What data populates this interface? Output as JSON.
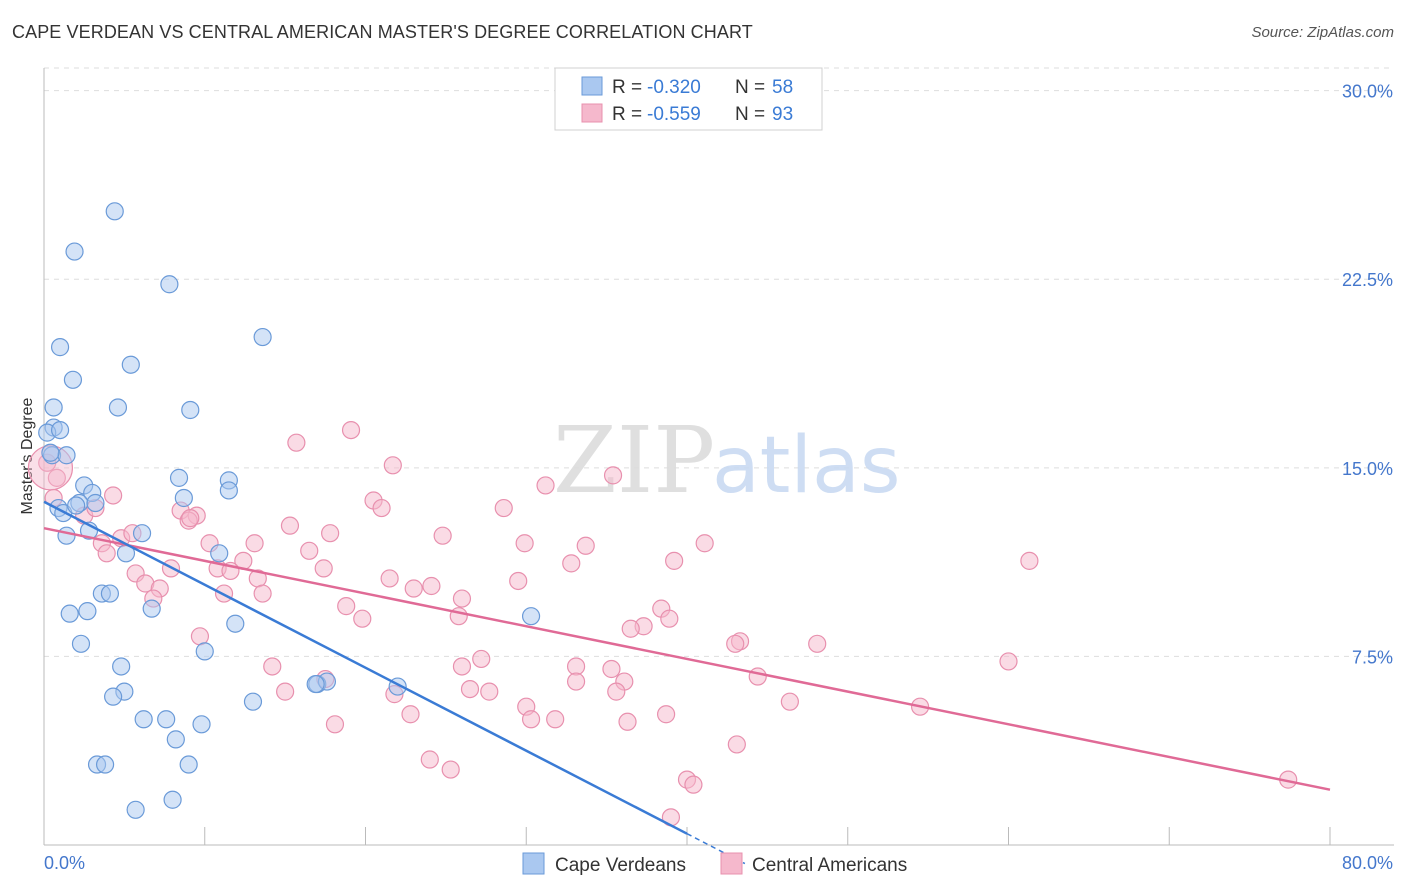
{
  "title": "CAPE VERDEAN VS CENTRAL AMERICAN MASTER'S DEGREE CORRELATION CHART",
  "source": "Source: ZipAtlas.com",
  "watermark": {
    "zip": "ZIP",
    "atlas": "atlas"
  },
  "colors": {
    "blue_fill": "#aac8f0",
    "blue_stroke": "#6a9ad8",
    "blue_line": "#3a7bd5",
    "pink_fill": "#f5b8cc",
    "pink_stroke": "#e890ae",
    "pink_line": "#e06a96",
    "tick_text": "#4477cc",
    "grid": "#dddddd"
  },
  "legend": {
    "rows": [
      {
        "r_label": "R =",
        "r_value": "-0.320",
        "n_label": "N =",
        "n_value": "58",
        "color": "blue"
      },
      {
        "r_label": "R =",
        "r_value": "-0.559",
        "n_label": "N =",
        "n_value": "93",
        "color": "pink"
      }
    ],
    "bottom": [
      "Cape Verdeans",
      "Central Americans"
    ]
  },
  "chart_data": {
    "type": "scatter",
    "title": "CAPE VERDEAN VS CENTRAL AMERICAN MASTER'S DEGREE CORRELATION CHART",
    "xlabel": "",
    "ylabel": "Master's Degree",
    "xlim": [
      0,
      80
    ],
    "ylim": [
      0,
      30.9
    ],
    "x_tick_labels": [
      "0.0%",
      "80.0%"
    ],
    "y_ticks": [
      7.5,
      15.0,
      22.5,
      30.0
    ],
    "y_tick_labels": [
      "7.5%",
      "15.0%",
      "22.5%",
      "30.0%"
    ],
    "grid": true,
    "legend_position": "top-center",
    "series": [
      {
        "name": "Cape Verdeans",
        "color": "blue",
        "points": [
          [
            4.4,
            25.2
          ],
          [
            1.9,
            23.6
          ],
          [
            7.8,
            22.3
          ],
          [
            13.6,
            20.2
          ],
          [
            1.0,
            19.8
          ],
          [
            5.4,
            19.1
          ],
          [
            1.8,
            18.5
          ],
          [
            4.6,
            17.4
          ],
          [
            9.1,
            17.3
          ],
          [
            0.6,
            17.4
          ],
          [
            0.6,
            16.6
          ],
          [
            0.2,
            16.4
          ],
          [
            0.5,
            15.5
          ],
          [
            1.4,
            15.5
          ],
          [
            8.4,
            14.6
          ],
          [
            11.5,
            14.5
          ],
          [
            11.5,
            14.1
          ],
          [
            2.5,
            14.3
          ],
          [
            3.0,
            14.0
          ],
          [
            2.2,
            13.6
          ],
          [
            3.2,
            13.6
          ],
          [
            0.9,
            13.4
          ],
          [
            1.2,
            13.2
          ],
          [
            8.7,
            13.8
          ],
          [
            2.8,
            12.5
          ],
          [
            6.1,
            12.4
          ],
          [
            1.4,
            12.3
          ],
          [
            5.1,
            11.6
          ],
          [
            10.9,
            11.6
          ],
          [
            3.6,
            10.0
          ],
          [
            4.1,
            10.0
          ],
          [
            1.6,
            9.2
          ],
          [
            2.7,
            9.3
          ],
          [
            6.7,
            9.4
          ],
          [
            11.9,
            8.8
          ],
          [
            30.3,
            9.1
          ],
          [
            2.3,
            8.0
          ],
          [
            10.0,
            7.7
          ],
          [
            4.8,
            7.1
          ],
          [
            5.0,
            6.1
          ],
          [
            4.3,
            5.9
          ],
          [
            13.0,
            5.7
          ],
          [
            17.0,
            6.4
          ],
          [
            17.6,
            6.5
          ],
          [
            22.0,
            6.3
          ],
          [
            6.2,
            5.0
          ],
          [
            7.6,
            5.0
          ],
          [
            9.8,
            4.8
          ],
          [
            8.2,
            4.2
          ],
          [
            3.3,
            3.2
          ],
          [
            3.8,
            3.2
          ],
          [
            9.0,
            3.2
          ],
          [
            5.7,
            1.4
          ],
          [
            8.0,
            1.8
          ],
          [
            16.9,
            6.4
          ],
          [
            0.4,
            15.6
          ],
          [
            2.0,
            13.5
          ],
          [
            1.0,
            16.5
          ]
        ],
        "trend": {
          "x": [
            0,
            40
          ],
          "y": [
            13.65,
            0.45
          ],
          "solid_to_x": 40,
          "dashed_to_x": 43.6
        }
      },
      {
        "name": "Central Americans",
        "color": "pink",
        "points": [
          [
            0.2,
            15.2
          ],
          [
            0.8,
            14.6
          ],
          [
            19.1,
            16.5
          ],
          [
            15.7,
            16.0
          ],
          [
            21.7,
            15.1
          ],
          [
            35.4,
            14.7
          ],
          [
            31.2,
            14.3
          ],
          [
            4.3,
            13.9
          ],
          [
            20.5,
            13.7
          ],
          [
            21.0,
            13.4
          ],
          [
            28.6,
            13.4
          ],
          [
            8.5,
            13.3
          ],
          [
            9.5,
            13.1
          ],
          [
            9.0,
            12.9
          ],
          [
            2.5,
            13.1
          ],
          [
            3.2,
            13.4
          ],
          [
            15.3,
            12.7
          ],
          [
            17.8,
            12.4
          ],
          [
            24.8,
            12.3
          ],
          [
            4.8,
            12.2
          ],
          [
            5.5,
            12.4
          ],
          [
            3.6,
            12.0
          ],
          [
            10.3,
            12.0
          ],
          [
            13.1,
            12.0
          ],
          [
            29.9,
            12.0
          ],
          [
            33.7,
            11.9
          ],
          [
            41.1,
            12.0
          ],
          [
            3.9,
            11.6
          ],
          [
            16.5,
            11.7
          ],
          [
            12.4,
            11.3
          ],
          [
            10.8,
            11.0
          ],
          [
            17.4,
            11.0
          ],
          [
            32.8,
            11.2
          ],
          [
            39.2,
            11.3
          ],
          [
            61.3,
            11.3
          ],
          [
            7.9,
            11.0
          ],
          [
            11.6,
            10.9
          ],
          [
            5.7,
            10.8
          ],
          [
            13.3,
            10.6
          ],
          [
            21.5,
            10.6
          ],
          [
            29.5,
            10.5
          ],
          [
            6.3,
            10.4
          ],
          [
            7.2,
            10.2
          ],
          [
            11.2,
            10.0
          ],
          [
            24.1,
            10.3
          ],
          [
            13.6,
            10.0
          ],
          [
            23.0,
            10.2
          ],
          [
            26.0,
            9.8
          ],
          [
            6.8,
            9.8
          ],
          [
            18.8,
            9.5
          ],
          [
            25.8,
            9.1
          ],
          [
            19.8,
            9.0
          ],
          [
            38.4,
            9.4
          ],
          [
            37.3,
            8.7
          ],
          [
            36.5,
            8.6
          ],
          [
            9.7,
            8.3
          ],
          [
            43.3,
            8.1
          ],
          [
            48.1,
            8.0
          ],
          [
            43.0,
            8.0
          ],
          [
            27.2,
            7.4
          ],
          [
            14.2,
            7.1
          ],
          [
            26.0,
            7.1
          ],
          [
            33.1,
            7.1
          ],
          [
            35.3,
            7.0
          ],
          [
            60.0,
            7.3
          ],
          [
            17.5,
            6.6
          ],
          [
            33.1,
            6.5
          ],
          [
            36.1,
            6.5
          ],
          [
            44.4,
            6.7
          ],
          [
            26.5,
            6.2
          ],
          [
            15.0,
            6.1
          ],
          [
            21.8,
            6.0
          ],
          [
            27.7,
            6.1
          ],
          [
            35.6,
            6.1
          ],
          [
            46.4,
            5.7
          ],
          [
            54.5,
            5.5
          ],
          [
            30.0,
            5.5
          ],
          [
            22.8,
            5.2
          ],
          [
            31.8,
            5.0
          ],
          [
            36.3,
            4.9
          ],
          [
            38.7,
            5.2
          ],
          [
            18.1,
            4.8
          ],
          [
            30.3,
            5.0
          ],
          [
            43.1,
            4.0
          ],
          [
            24.0,
            3.4
          ],
          [
            25.3,
            3.0
          ],
          [
            40.0,
            2.6
          ],
          [
            40.4,
            2.4
          ],
          [
            39.0,
            1.1
          ],
          [
            77.4,
            2.6
          ],
          [
            0.6,
            13.8
          ],
          [
            9.1,
            13.0
          ],
          [
            38.9,
            9.0
          ]
        ],
        "trend": {
          "x": [
            0,
            80
          ],
          "y": [
            12.6,
            2.2
          ]
        }
      }
    ]
  }
}
